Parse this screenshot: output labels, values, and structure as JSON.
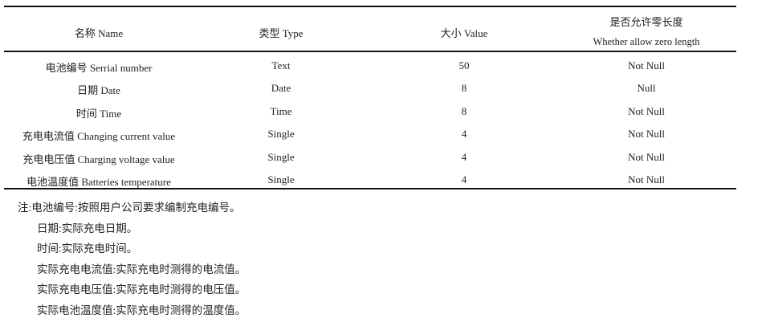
{
  "table": {
    "headers": [
      {
        "line1": "名称 Name"
      },
      {
        "line1": "类型  Type"
      },
      {
        "line1": "大小 Value"
      },
      {
        "line1": "是否允许零长度",
        "line2": "Whether allow zero length"
      }
    ],
    "rows": [
      [
        "电池编号  Serrial number",
        "Text",
        "50",
        "Not Null"
      ],
      [
        "日期  Date",
        "Date",
        "8",
        "Null"
      ],
      [
        "时间  Time",
        "Time",
        "8",
        "Not Null"
      ],
      [
        "充电电流值  Changing current value",
        "Single",
        "4",
        "Not Null"
      ],
      [
        "充电电压值  Charging voltage value",
        "Single",
        "4",
        "Not Null"
      ],
      [
        "电池温度值  Batteries temperature",
        "Single",
        "4",
        "Not Null"
      ]
    ]
  },
  "notes": [
    "注:电池编号:按照用户公司要求编制充电编号。",
    "日期:实际充电日期。",
    "时间:实际充电时间。",
    "实际充电电流值:实际充电时测得的电流值。",
    "实际充电电压值:实际充电时测得的电压值。",
    "实际电池温度值:实际充电时测得的温度值。"
  ]
}
